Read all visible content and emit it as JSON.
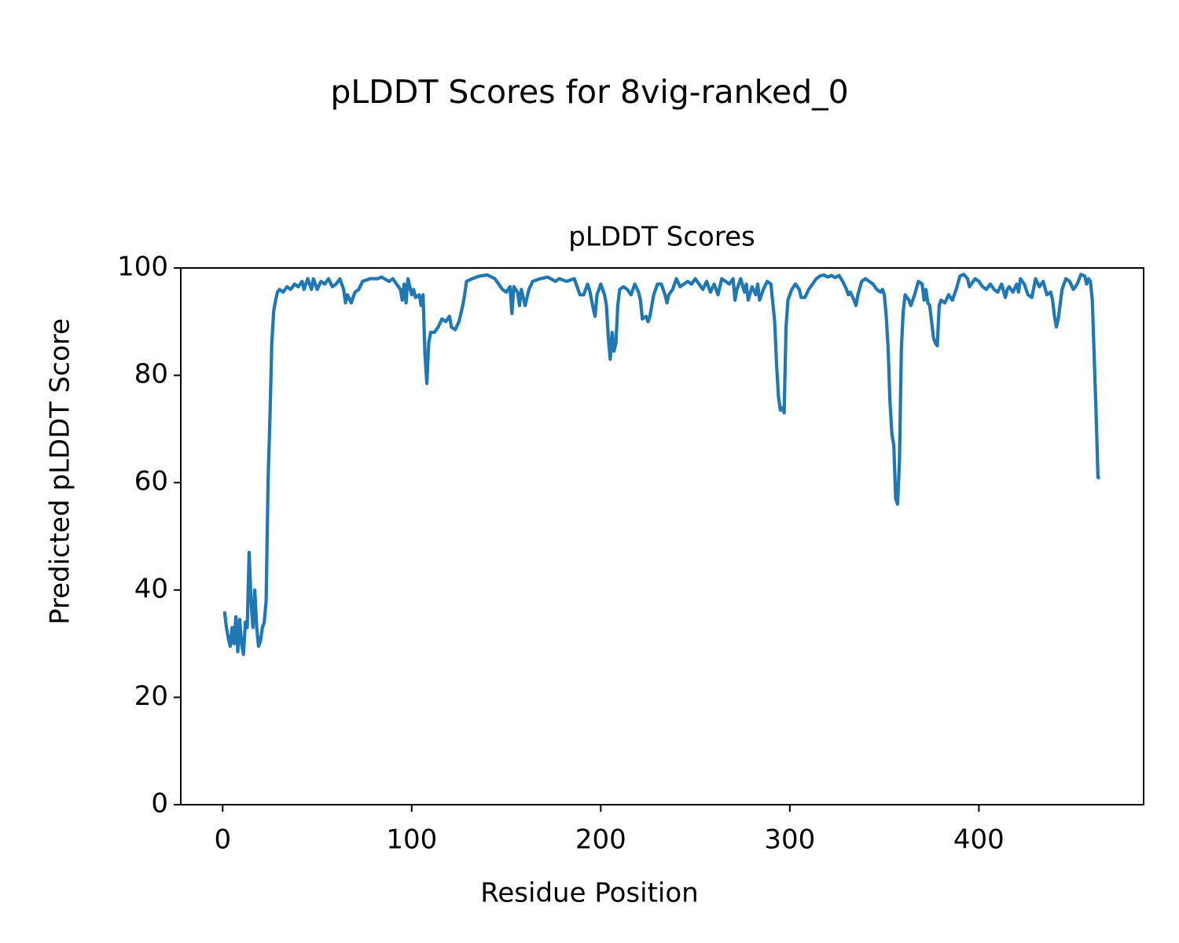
{
  "chart_data": {
    "type": "line",
    "suptitle": "pLDDT Scores for 8vig-ranked_0",
    "title": "pLDDT Scores",
    "xlabel": "Residue Position",
    "ylabel": "Predicted pLDDT Score",
    "xlim": [
      -22.15,
      487.15
    ],
    "ylim": [
      0,
      100
    ],
    "xticks": [
      0,
      100,
      200,
      300,
      400
    ],
    "yticks": [
      0,
      20,
      40,
      60,
      80,
      100
    ],
    "grid": false,
    "x": [
      1,
      2,
      3,
      4,
      5,
      6,
      7,
      8,
      9,
      10,
      11,
      12,
      13,
      14,
      15,
      16,
      17,
      18,
      19,
      20,
      21,
      22,
      23,
      24,
      25,
      26,
      27,
      28,
      29,
      30,
      32,
      34,
      36,
      38,
      40,
      42,
      43,
      45,
      47,
      48,
      50,
      52,
      54,
      56,
      58,
      60,
      62,
      64,
      65,
      66,
      68,
      70,
      72,
      74,
      78,
      82,
      84,
      88,
      90,
      92,
      94,
      95,
      96,
      97,
      98,
      100,
      101,
      102,
      104,
      105,
      106,
      107,
      108,
      109,
      110,
      112,
      114,
      116,
      118,
      120,
      121,
      123,
      125,
      127,
      128,
      129,
      132,
      136,
      140,
      144,
      148,
      150,
      152,
      153,
      154,
      156,
      157,
      158,
      160,
      162,
      164,
      168,
      172,
      176,
      178,
      182,
      186,
      188,
      189,
      191,
      193,
      194,
      196,
      197,
      198,
      200,
      202,
      203,
      204,
      205,
      206,
      207,
      208,
      209,
      210,
      212,
      214,
      216,
      218,
      220,
      221,
      222,
      224,
      225,
      226,
      228,
      230,
      232,
      234,
      235,
      236,
      238,
      240,
      242,
      244,
      246,
      248,
      250,
      252,
      254,
      256,
      258,
      260,
      262,
      264,
      266,
      268,
      270,
      271,
      272,
      274,
      276,
      277,
      278,
      280,
      282,
      283,
      284,
      286,
      288,
      290,
      292,
      293,
      294,
      295,
      296,
      297,
      298,
      299,
      301,
      303,
      305,
      306,
      308,
      310,
      312,
      314,
      316,
      318,
      320,
      322,
      324,
      326,
      328,
      330,
      331,
      332,
      334,
      335,
      336,
      338,
      340,
      344,
      346,
      348,
      349,
      350,
      351,
      352,
      353,
      354,
      355,
      356,
      357,
      358,
      359,
      360,
      361,
      363,
      364,
      366,
      368,
      370,
      371,
      372,
      373,
      374,
      375,
      376,
      377,
      378,
      379,
      380,
      382,
      384,
      386,
      388,
      390,
      392,
      394,
      395,
      396,
      398,
      400,
      402,
      404,
      406,
      408,
      410,
      412,
      414,
      415,
      416,
      418,
      420,
      421,
      422,
      424,
      426,
      428,
      430,
      432,
      434,
      436,
      438,
      439,
      440,
      441,
      442,
      444,
      446,
      448,
      450,
      452,
      454,
      456,
      457,
      458,
      459,
      460,
      462,
      463,
      464
    ],
    "series": [
      {
        "name": "pLDDT",
        "color": "#1f77b4",
        "values": [
          36,
          33,
          31,
          29.5,
          33,
          30,
          35,
          28.5,
          34.5,
          30,
          28,
          34,
          33,
          47,
          38,
          33,
          40,
          33,
          29.5,
          30.5,
          33,
          34,
          38,
          60,
          72,
          86,
          92,
          94,
          95.5,
          96,
          95.5,
          96.5,
          96,
          97,
          96.5,
          97.5,
          96,
          98,
          96,
          98,
          96,
          97.5,
          97,
          98,
          96.5,
          97,
          98,
          96,
          93.5,
          95,
          93.5,
          95.5,
          96,
          97.5,
          98,
          98,
          98.3,
          97.5,
          98,
          97,
          96,
          94,
          97,
          93.5,
          98,
          95,
          96,
          94.5,
          95,
          93,
          95,
          84,
          78.5,
          86,
          88,
          88,
          89,
          90.5,
          90,
          91,
          89,
          88.5,
          90,
          93,
          95,
          97.5,
          98,
          98.5,
          98.7,
          98,
          96,
          95.5,
          96.5,
          91.5,
          96.5,
          95.5,
          93,
          96,
          93,
          96,
          97.5,
          98,
          98.3,
          97.5,
          98,
          97.5,
          98,
          96,
          95,
          95,
          97,
          96,
          92.5,
          91,
          95,
          97,
          95,
          93,
          87,
          83,
          88,
          84.5,
          86,
          93,
          96,
          96.5,
          96,
          95,
          97,
          95.5,
          94,
          90.5,
          91,
          90,
          91,
          95,
          97,
          97,
          95,
          93.5,
          95,
          96,
          98,
          96.5,
          97,
          97.5,
          97,
          98,
          97,
          96,
          97.5,
          95.5,
          97,
          95,
          98,
          97.5,
          97,
          98,
          94,
          96,
          98,
          95.5,
          97,
          94,
          96.5,
          95,
          97,
          94,
          96,
          97.5,
          97,
          90,
          82,
          76,
          73.5,
          74,
          73,
          89,
          94,
          96,
          97,
          96,
          94.5,
          94.5,
          96,
          97,
          98,
          98.5,
          98.7,
          98.3,
          98.6,
          98.2,
          98.6,
          97.5,
          96,
          95,
          95.5,
          94,
          93,
          95,
          97.5,
          98,
          97,
          96,
          95.5,
          96,
          95,
          91,
          85,
          75,
          69,
          67,
          57,
          56,
          64,
          85,
          92,
          95,
          94,
          93,
          95,
          97.5,
          97,
          94,
          96,
          93.5,
          93,
          90,
          87,
          86,
          85.5,
          93,
          94,
          93.5,
          95,
          94,
          96,
          98.5,
          98.8,
          98,
          96.5,
          97,
          98,
          97.5,
          96.5,
          96,
          97,
          96,
          95.5,
          97,
          94.5,
          96,
          96.5,
          95.5,
          97,
          95.5,
          98,
          97,
          95,
          94.5,
          98,
          96.5,
          97.5,
          95,
          95.5,
          94,
          91,
          89,
          90.5,
          96,
          98,
          97.5,
          96,
          97,
          98.8,
          98.5,
          97,
          98,
          97.5,
          94,
          73,
          61,
          60.8
        ]
      }
    ]
  }
}
